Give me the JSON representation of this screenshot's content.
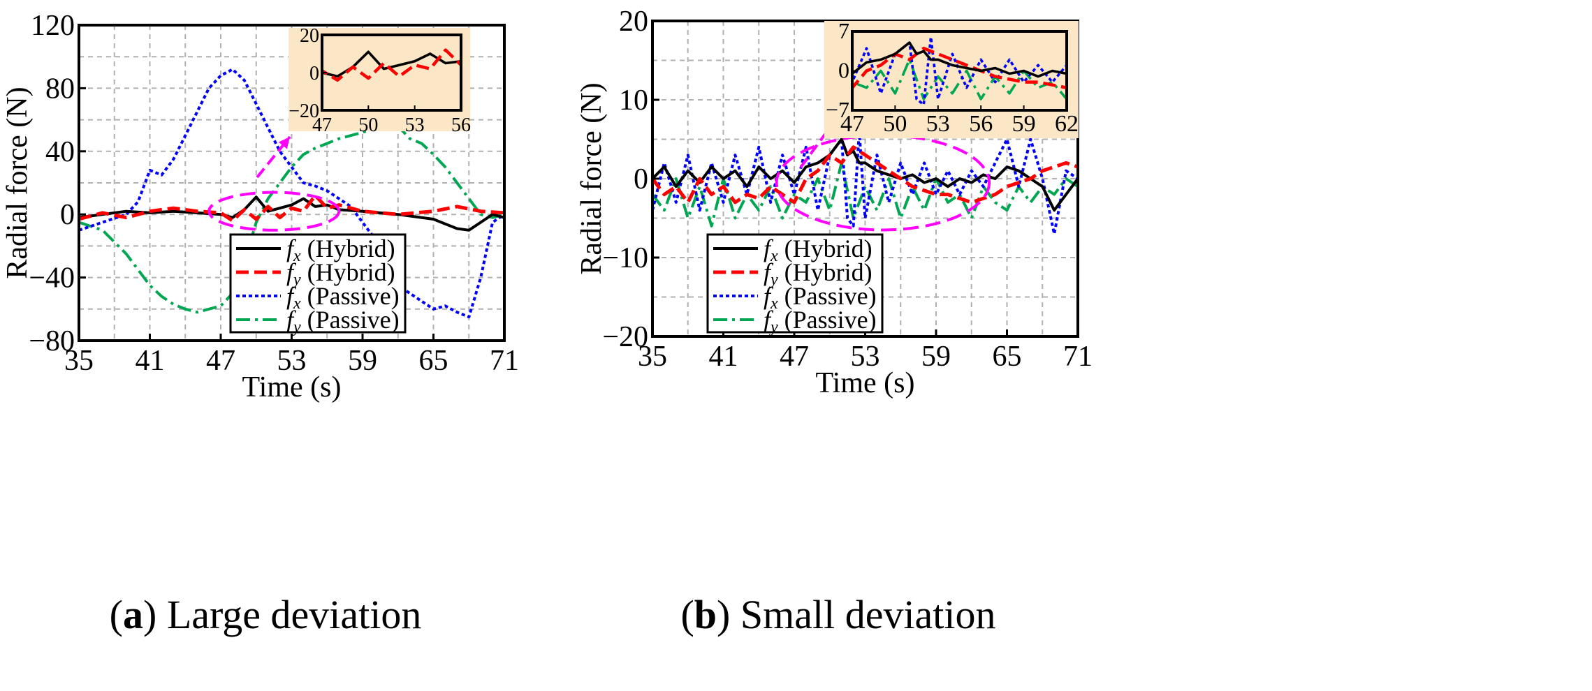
{
  "colors": {
    "fx_hybrid": "#000000",
    "fy_hybrid": "#ff0000",
    "fx_passive": "#0000ff",
    "fy_passive": "#00a651",
    "highlight": "#ff00ff",
    "inset_bg": "#fbe7c6",
    "grid": "#b0b0b0"
  },
  "chart_data": [
    {
      "type": "line",
      "panel_letter": "a",
      "caption": "Large deviation",
      "xlabel": "Time (s)",
      "ylabel": "Radial force (N)",
      "xlim": [
        35,
        71
      ],
      "ylim": [
        -80,
        120
      ],
      "xticks": [
        35,
        41,
        47,
        53,
        59,
        65,
        71
      ],
      "yticks": [
        -80,
        -40,
        0,
        40,
        80,
        120
      ],
      "ytick_labels": [
        "−80",
        "−40",
        "0",
        "40",
        "80",
        "120"
      ],
      "grid": true,
      "legend_position": "bottom-right",
      "series": [
        {
          "name": "f_x",
          "sub": "x",
          "label": "(Hybrid)",
          "style": "solid",
          "color_key": "fx_hybrid",
          "x": [
            35,
            37,
            39,
            41,
            43,
            45,
            47,
            48,
            49,
            50,
            51,
            52,
            53,
            54,
            55,
            56,
            57,
            59,
            62,
            65,
            66,
            67,
            68,
            69,
            70,
            71
          ],
          "y": [
            -2,
            0,
            2,
            1,
            2,
            1,
            0,
            -2,
            3,
            11,
            2,
            4,
            6,
            10,
            5,
            6,
            3,
            2,
            0,
            -3,
            -6,
            -9,
            -10,
            -5,
            0,
            -2
          ]
        },
        {
          "name": "f_y",
          "sub": "y",
          "label": "(Hybrid)",
          "style": "dashed",
          "color_key": "fy_hybrid",
          "x": [
            35,
            37,
            39,
            41,
            43,
            45,
            47,
            48,
            49,
            50,
            51,
            52,
            53,
            54,
            55,
            56,
            57,
            59,
            62,
            65,
            67,
            69,
            71
          ],
          "y": [
            -3,
            1,
            -2,
            2,
            4,
            2,
            1,
            -4,
            3,
            -3,
            5,
            -2,
            4,
            2,
            12,
            4,
            6,
            2,
            0,
            2,
            5,
            2,
            1
          ]
        },
        {
          "name": "f_x",
          "sub": "x",
          "label": "(Passive)",
          "style": "dotted",
          "color_key": "fx_passive",
          "x": [
            35,
            37,
            39,
            40,
            41,
            42,
            43,
            44,
            45,
            46,
            47,
            48,
            49,
            50,
            51,
            52,
            53,
            54,
            55,
            56,
            57,
            58,
            59,
            60,
            61,
            62,
            63,
            64,
            65,
            66,
            67,
            68,
            69,
            70,
            71
          ],
          "y": [
            -10,
            -5,
            0,
            8,
            28,
            25,
            35,
            50,
            65,
            80,
            88,
            92,
            85,
            70,
            55,
            40,
            30,
            20,
            18,
            15,
            10,
            5,
            -5,
            -15,
            -30,
            -45,
            -50,
            -55,
            -60,
            -58,
            -62,
            -65,
            -40,
            -5,
            0
          ]
        },
        {
          "name": "f_y",
          "sub": "y",
          "label": "(Passive)",
          "style": "dashdot",
          "color_key": "fy_passive",
          "x": [
            35,
            37,
            39,
            40,
            41,
            42,
            43,
            44,
            45,
            46,
            47,
            48,
            49,
            50,
            51,
            52,
            53,
            54,
            55,
            56,
            57,
            58,
            59,
            60,
            61,
            62,
            63,
            64,
            65,
            66,
            67,
            68,
            69,
            70,
            71
          ],
          "y": [
            -5,
            -10,
            -25,
            -35,
            -45,
            -52,
            -57,
            -60,
            -62,
            -60,
            -58,
            -50,
            -30,
            -5,
            10,
            20,
            30,
            38,
            42,
            45,
            48,
            50,
            52,
            55,
            58,
            56,
            48,
            45,
            38,
            30,
            20,
            10,
            0,
            -2,
            0
          ]
        }
      ],
      "inset": {
        "xlim": [
          47,
          56
        ],
        "ylim": [
          -20,
          20
        ],
        "xticks": [
          47,
          50,
          53,
          56
        ],
        "yticks": [
          20,
          0,
          -20
        ],
        "ytick_labels": [
          "20",
          "0",
          "−20"
        ]
      },
      "highlight": {
        "x_center": 51.5,
        "y_center": 2,
        "x_radius": 5.5,
        "y_radius": 12
      }
    },
    {
      "type": "line",
      "panel_letter": "b",
      "caption": "Small deviation",
      "xlabel": "Time (s)",
      "ylabel": "Radial force (N)",
      "xlim": [
        35,
        71
      ],
      "ylim": [
        -20,
        20
      ],
      "xticks": [
        35,
        41,
        47,
        53,
        59,
        65,
        71
      ],
      "yticks": [
        -20,
        -10,
        0,
        10,
        20
      ],
      "ytick_labels": [
        "−20",
        "−10",
        "0",
        "10",
        "20"
      ],
      "grid": true,
      "legend_position": "bottom-left",
      "series": [
        {
          "name": "f_x",
          "sub": "x",
          "label": "(Hybrid)",
          "style": "solid",
          "color_key": "fx_hybrid",
          "x": [
            35,
            36,
            37,
            38,
            39,
            40,
            41,
            42,
            43,
            44,
            45,
            46,
            47,
            48,
            49,
            50,
            50.5,
            51,
            51.5,
            52,
            52.5,
            53,
            54,
            55,
            56,
            57,
            58,
            59,
            60,
            61,
            62,
            63,
            64,
            65,
            66,
            67,
            68,
            69,
            70,
            71
          ],
          "y": [
            0,
            1.5,
            -1,
            1,
            -0.5,
            1.5,
            0,
            1,
            -1,
            1.5,
            0,
            1,
            -0.5,
            1.5,
            2,
            3,
            4,
            5,
            3,
            3.5,
            2,
            2,
            1,
            0.5,
            0,
            0.5,
            -0.5,
            0,
            -1,
            0,
            -0.5,
            0.5,
            0,
            1.5,
            1,
            0,
            -1,
            -4,
            -2,
            0
          ]
        },
        {
          "name": "f_y",
          "sub": "y",
          "label": "(Hybrid)",
          "style": "dashed",
          "color_key": "fy_hybrid",
          "x": [
            35,
            36,
            37,
            38,
            39,
            40,
            41,
            42,
            43,
            44,
            45,
            46,
            47,
            48,
            49,
            50,
            51,
            52,
            53,
            54,
            55,
            56,
            57,
            58,
            59,
            60,
            61,
            62,
            63,
            64,
            65,
            66,
            67,
            68,
            69,
            70,
            71
          ],
          "y": [
            0,
            -2,
            -1,
            -3,
            0,
            -2,
            -1,
            -3,
            -2,
            -2.5,
            -1,
            -2,
            -3,
            0,
            1,
            3,
            2,
            4,
            3,
            2,
            1,
            0,
            -1,
            -1.5,
            -2,
            -2,
            -2.5,
            -3,
            -2.5,
            -2,
            -1,
            -0.5,
            0,
            1,
            1.5,
            2,
            1.5
          ]
        },
        {
          "name": "f_x",
          "sub": "x",
          "label": "(Passive)",
          "style": "dotted",
          "color_key": "fx_passive",
          "x": [
            35,
            36,
            37,
            38,
            39,
            40,
            41,
            42,
            43,
            44,
            45,
            46,
            47,
            48,
            49,
            50,
            51,
            51.5,
            52,
            52.5,
            53,
            54,
            55,
            56,
            57,
            58,
            59,
            60,
            61,
            62,
            63,
            64,
            65,
            66,
            67,
            68,
            69,
            70,
            71
          ],
          "y": [
            -4,
            2,
            -3,
            3,
            -4,
            2,
            -3,
            3,
            -2,
            4,
            -3,
            3,
            -2,
            4,
            -4,
            3,
            5,
            -5,
            -6,
            6,
            -5,
            3,
            -3,
            2,
            -2,
            2,
            -2,
            1,
            -2,
            1,
            -1,
            2,
            5,
            -1,
            5,
            0,
            -7,
            1,
            0
          ]
        },
        {
          "name": "f_y",
          "sub": "y",
          "label": "(Passive)",
          "style": "dashdot",
          "color_key": "fy_passive",
          "x": [
            35,
            36,
            37,
            38,
            39,
            40,
            41,
            42,
            43,
            44,
            45,
            46,
            47,
            48,
            49,
            50,
            51,
            52,
            53,
            54,
            55,
            56,
            57,
            58,
            59,
            60,
            61,
            62,
            63,
            64,
            65,
            66,
            67,
            68,
            69,
            70,
            71
          ],
          "y": [
            -2,
            -4,
            0,
            -5,
            -1,
            -6,
            0,
            -5,
            -2,
            -4,
            -1,
            -5,
            -2,
            -3,
            0,
            -4,
            2,
            -5,
            -1,
            -4,
            0,
            -5,
            -1,
            -4,
            0,
            -3,
            -2,
            -5,
            -1,
            -3,
            -4,
            -1,
            -3,
            -1,
            -2,
            0,
            -1
          ]
        }
      ],
      "inset": {
        "xlim": [
          47,
          62
        ],
        "ylim": [
          -7,
          7
        ],
        "xticks": [
          47,
          50,
          53,
          56,
          59,
          62
        ],
        "yticks": [
          7,
          0,
          -7
        ],
        "ytick_labels": [
          "7",
          "0",
          "−7"
        ]
      },
      "highlight": {
        "x_center": 54.5,
        "y_center": -0.5,
        "x_radius": 9,
        "y_radius": 6
      }
    }
  ]
}
